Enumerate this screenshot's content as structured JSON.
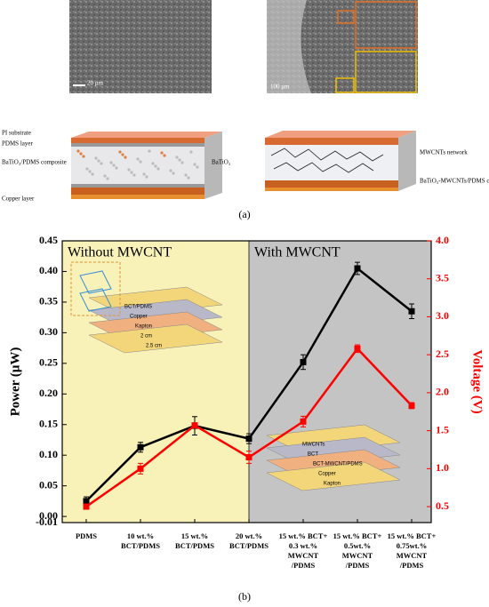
{
  "panel_a": {
    "label": "(a)",
    "sem_left_scale": "20 μm",
    "sem_right_scale": "100 μm",
    "left_layers": [
      "PI substrate",
      "PDMS layer",
      "BaTiO₃/PDMS composite",
      "Copper layer"
    ],
    "left_particle": "BaTiO₃",
    "right_network": "MWCNTs network",
    "right_composite": "BaTiO₃-MWCNTs/PDMS composite"
  },
  "chart_data": {
    "type": "line",
    "label": "(b)",
    "region_left": "Without MWCNT",
    "region_right": "With MWCNT",
    "inset_left": [
      "BCT/PDMS",
      "Copper",
      "Kapton",
      "2 cm",
      "2.5 cm"
    ],
    "inset_right": [
      "MWCNTs",
      "BCT",
      "BCT-MWCNT/PDMS",
      "Copper",
      "Kapton"
    ],
    "ylabel": "Power (μW)",
    "y2label": "Voltage (V)",
    "categories": [
      "PDMS",
      "10 wt.% BCT/PDMS",
      "15 wt.% BCT/PDMS",
      "20 wt.% BCT/PDMS",
      "15 wt.% BCT+ 0.3 wt.% MWCNT /PDMS",
      "15 wt.% BCT+ 0.5wt.% MWCNT /PDMS",
      "15 wt.% BCT+ 0.75wt.% MWCNT /PDMS"
    ],
    "series": [
      {
        "name": "Power",
        "color": "#000000",
        "axis": "y",
        "values": [
          0.025,
          0.113,
          0.148,
          0.127,
          0.252,
          0.405,
          0.335
        ],
        "errors": [
          0.007,
          0.008,
          0.015,
          0.008,
          0.012,
          0.01,
          0.012
        ]
      },
      {
        "name": "Voltage",
        "color": "#ff0000",
        "axis": "y2",
        "values": [
          0.5,
          1.0,
          1.57,
          1.15,
          1.62,
          2.58,
          1.83
        ],
        "errors": [
          0.02,
          0.07,
          0.03,
          0.08,
          0.07,
          0.05,
          0.04
        ]
      }
    ],
    "ylim": [
      -0.01,
      0.45
    ],
    "yticks": [
      -0.01,
      {
        "value": 0,
        "label": "0.00"
      },
      0.05,
      {
        "value": 0.1,
        "label": "0.10"
      },
      0.15,
      {
        "value": 0.2,
        "label": "0.20"
      },
      0.25,
      {
        "value": 0.3,
        "label": "0.30"
      },
      0.35,
      {
        "value": 0.4,
        "label": "0.40"
      },
      0.45
    ],
    "y2lim": [
      0.29,
      4.0
    ],
    "y2ticks": [
      0.5,
      {
        "value": 1,
        "label": "1.0"
      },
      1.5,
      {
        "value": 2,
        "label": "2.0"
      },
      2.5,
      {
        "value": 3,
        "label": "3.0"
      },
      3.5,
      {
        "value": 4,
        "label": "4.0"
      }
    ],
    "y2color": "#ff0000"
  }
}
